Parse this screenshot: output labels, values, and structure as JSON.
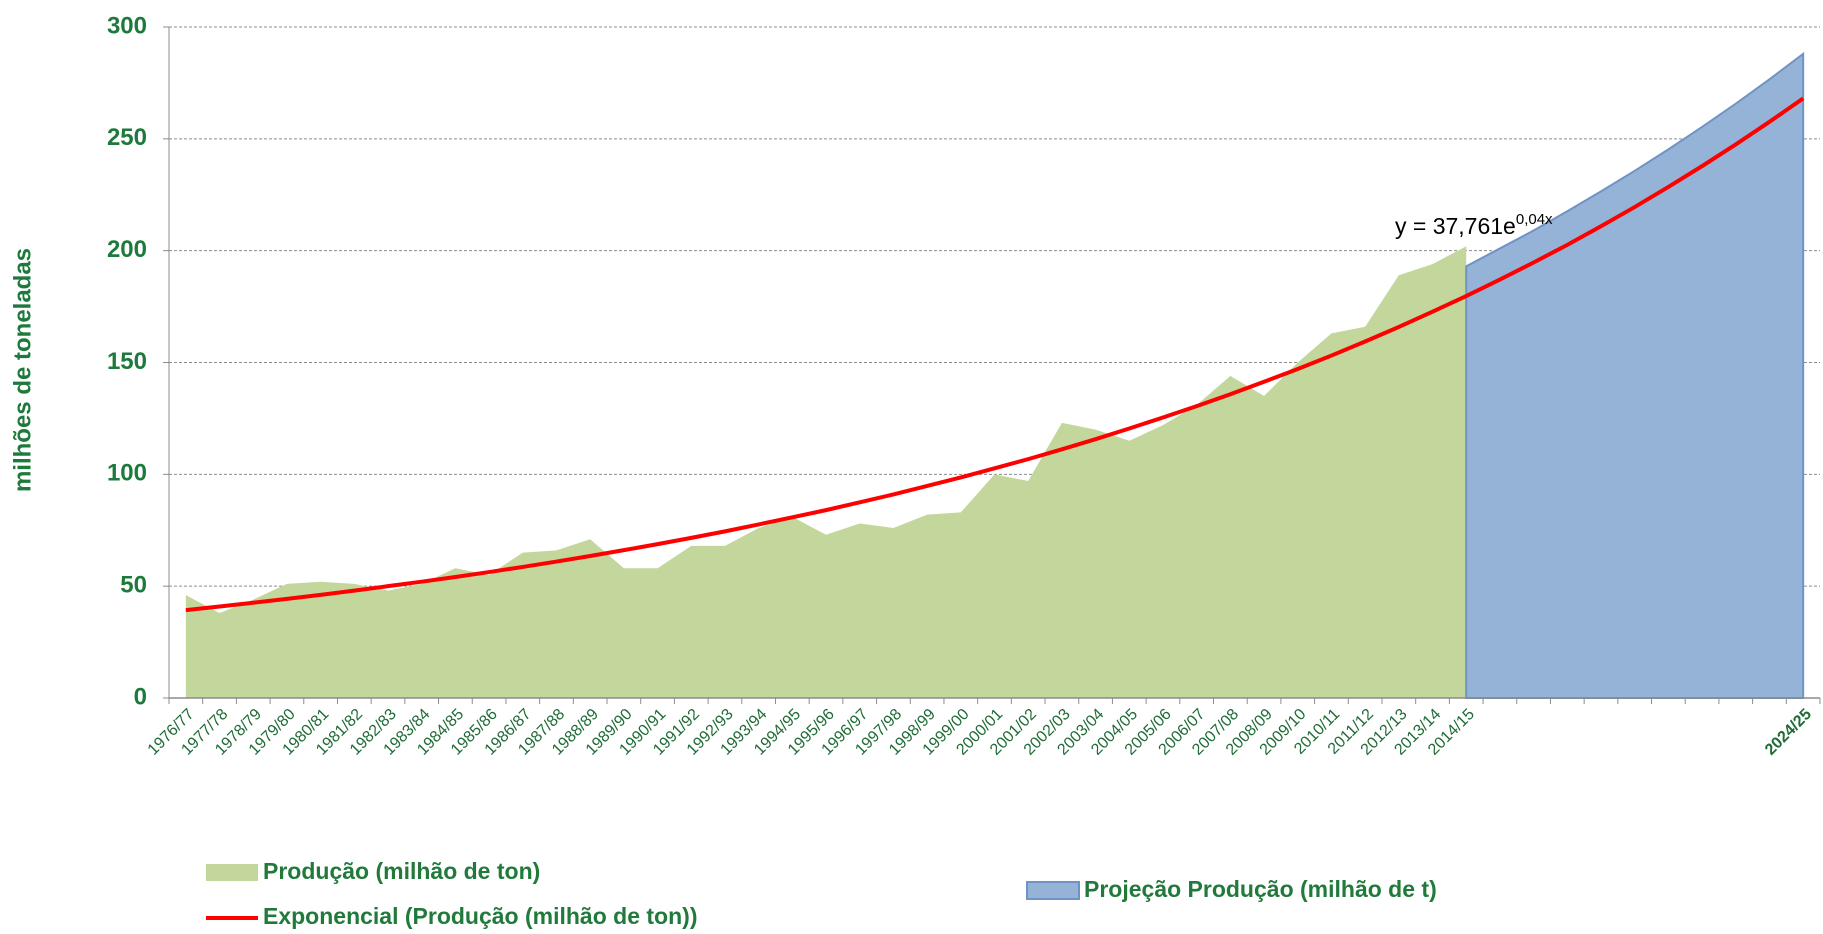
{
  "chart_data": {
    "type": "area",
    "y_label": "milhões de toneladas",
    "annotation": {
      "text": "y = 37,761e",
      "superscript": "0,04x"
    },
    "categories": [
      "1976/77",
      "1977/78",
      "1978/79",
      "1979/80",
      "1980/81",
      "1981/82",
      "1982/83",
      "1983/84",
      "1984/85",
      "1985/86",
      "1986/87",
      "1987/88",
      "1988/89",
      "1989/90",
      "1990/91",
      "1991/92",
      "1992/93",
      "1993/94",
      "1994/95",
      "1995/96",
      "1996/97",
      "1997/98",
      "1998/99",
      "1999/00",
      "2000/01",
      "2001/02",
      "2002/03",
      "2003/04",
      "2004/05",
      "2005/06",
      "2006/07",
      "2007/08",
      "2008/09",
      "2009/10",
      "2010/11",
      "2011/12",
      "2012/13",
      "2013/14",
      "2014/15",
      null,
      null,
      null,
      null,
      null,
      null,
      null,
      null,
      null,
      "2024/25"
    ],
    "series": [
      {
        "name": "Produção (milhão de ton)",
        "mark": "area",
        "color": "#c3d69b",
        "values": [
          46,
          38,
          44,
          51,
          52,
          51,
          48,
          51,
          58,
          55,
          65,
          66,
          71,
          58,
          58,
          68,
          68,
          76,
          81,
          73,
          78,
          76,
          82,
          83,
          100,
          97,
          123,
          120,
          115,
          122,
          131,
          144,
          135,
          150,
          163,
          166,
          189,
          194,
          202,
          null,
          null,
          null,
          null,
          null,
          null,
          null,
          null,
          null,
          null
        ]
      },
      {
        "name": "Projeção Produção (milhão de t)",
        "mark": "area",
        "color": "#95b3d7",
        "values": [
          null,
          null,
          null,
          null,
          null,
          null,
          null,
          null,
          null,
          null,
          null,
          null,
          null,
          null,
          null,
          null,
          null,
          null,
          null,
          null,
          null,
          null,
          null,
          null,
          null,
          null,
          null,
          null,
          null,
          null,
          null,
          null,
          null,
          null,
          null,
          null,
          null,
          null,
          193,
          201,
          209,
          217.6,
          226.5,
          235.7,
          245.3,
          255.3,
          265.7,
          276.6,
          288
        ]
      },
      {
        "name": "Exponencial (Produção (milhão de ton))",
        "mark": "line",
        "color": "#ff0000",
        "values": [
          39.3,
          40.9,
          42.6,
          44.3,
          46.1,
          48.0,
          50.0,
          52.0,
          54.1,
          56.3,
          58.6,
          61.0,
          63.5,
          66.1,
          68.8,
          71.6,
          74.5,
          77.6,
          80.8,
          84.0,
          87.5,
          91.0,
          94.8,
          98.6,
          102.7,
          106.8,
          111.2,
          115.7,
          120.5,
          125.4,
          130.5,
          135.8,
          141.4,
          147.1,
          153.1,
          159.4,
          165.9,
          172.7,
          179.7,
          187.1,
          194.7,
          202.6,
          210.9,
          219.5,
          228.5,
          237.8,
          247.5,
          257.6,
          268.1
        ]
      }
    ],
    "ylim": [
      0,
      300
    ],
    "yticks": [
      0,
      50,
      100,
      150,
      200,
      250,
      300
    ],
    "grid": true
  }
}
